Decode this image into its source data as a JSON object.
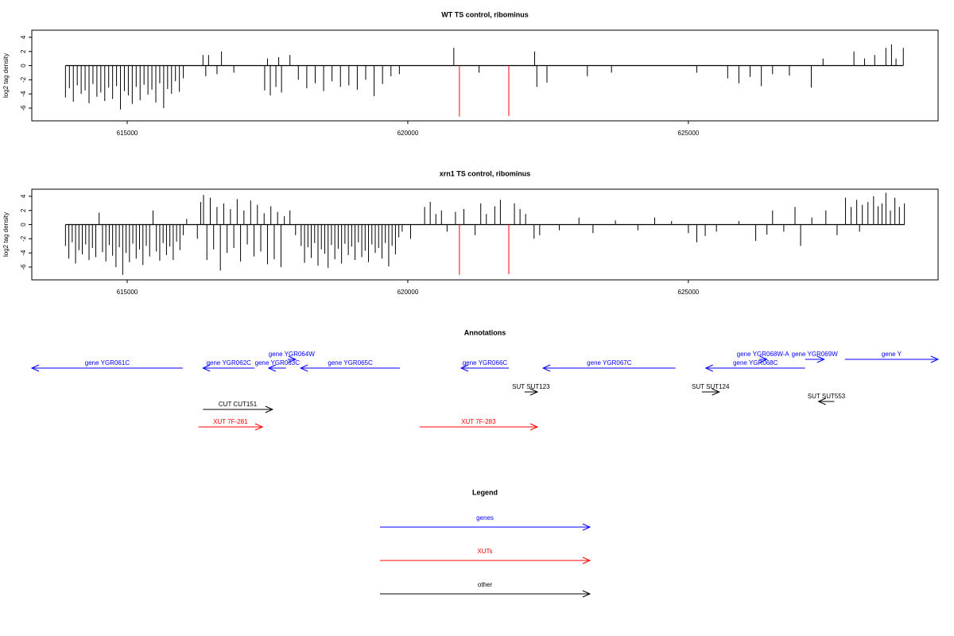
{
  "chart_data": [
    {
      "type": "spike",
      "title": "WT TS control, ribominus",
      "y_label": "log2 tag density",
      "xlim": [
        613300,
        629450
      ],
      "xticks": [
        615000,
        620000,
        625000
      ],
      "ylim": [
        -7.8,
        5
      ],
      "yticks": [
        -6,
        -4,
        -2,
        0,
        2,
        4
      ],
      "series": [
        {
          "color": "#000000",
          "x": [
            613900,
            613970,
            614040,
            614110,
            614180,
            614250,
            614320,
            614390,
            614460,
            614530,
            614600,
            614670,
            614740,
            614810,
            614880,
            614950,
            615020,
            615090,
            615160,
            615230,
            615300,
            615370,
            615440,
            615510,
            615580,
            615650,
            615720,
            615790,
            615860,
            615930,
            616000,
            616350,
            616400,
            616450,
            616600,
            616680,
            616900,
            617450,
            617500,
            617550,
            617650,
            617700,
            617750,
            617900,
            618050,
            618200,
            618350,
            618500,
            618650,
            618800,
            618950,
            619100,
            619250,
            619400,
            619550,
            619700,
            619850,
            620820,
            621270,
            622260,
            622300,
            622480,
            623200,
            623630,
            625150,
            625700,
            625900,
            626100,
            626300,
            626500,
            626800,
            627190,
            627400,
            627950,
            628140,
            628320,
            628520,
            628620,
            628700,
            628830
          ],
          "values": [
            -4.5,
            -3.2,
            -5.1,
            -2.8,
            -4.0,
            -3.5,
            -5.3,
            -2.6,
            -4.4,
            -3.8,
            -5.0,
            -3.1,
            -4.7,
            -2.9,
            -6.2,
            -3.6,
            -4.2,
            -5.4,
            -3.0,
            -4.9,
            -2.7,
            -4.1,
            -3.4,
            -5.2,
            -2.5,
            -6.0,
            -3.3,
            -4.0,
            -2.2,
            -3.7,
            -1.8,
            1.5,
            -1.5,
            1.5,
            -1.2,
            2.0,
            -1.0,
            -3.5,
            1.0,
            -4.2,
            -3.0,
            1.2,
            -3.8,
            1.5,
            -2.0,
            -3.2,
            -2.5,
            -3.6,
            -2.2,
            -3.0,
            -2.8,
            -3.4,
            -2.0,
            -4.3,
            -2.6,
            -1.5,
            -1.2,
            2.5,
            -1.0,
            2.0,
            -3.0,
            -2.4,
            -1.5,
            -1.0,
            -1.0,
            -1.8,
            -2.5,
            -1.6,
            -2.9,
            -1.2,
            -1.4,
            -3.1,
            1.0,
            2.0,
            1.0,
            1.5,
            2.5,
            3.0,
            1.0,
            2.5
          ]
        },
        {
          "color": "#ff0000",
          "x": [
            620920,
            621800
          ],
          "values": [
            -7.2,
            -7.1
          ]
        }
      ]
    },
    {
      "type": "spike",
      "title": "xrn1 TS control, ribominus",
      "y_label": "log2 tag density",
      "xlim": [
        613300,
        629450
      ],
      "xticks": [
        615000,
        620000,
        625000
      ],
      "ylim": [
        -7.8,
        5
      ],
      "yticks": [
        -6,
        -4,
        -2,
        0,
        2,
        4
      ],
      "series": [
        {
          "color": "#000000",
          "x": [
            613900,
            613960,
            614020,
            614080,
            614140,
            614200,
            614260,
            614320,
            614380,
            614440,
            614500,
            614560,
            614620,
            614680,
            614740,
            614800,
            614860,
            614920,
            614980,
            615040,
            615100,
            615160,
            615220,
            615280,
            615340,
            615400,
            615460,
            615520,
            615580,
            615640,
            615700,
            615760,
            615820,
            615880,
            615940,
            616000,
            616060,
            616250,
            616310,
            616360,
            616420,
            616480,
            616540,
            616600,
            616660,
            616720,
            616780,
            616840,
            616900,
            616960,
            617020,
            617080,
            617140,
            617200,
            617260,
            617320,
            617380,
            617440,
            617500,
            617560,
            617620,
            617680,
            617740,
            617800,
            617900,
            618000,
            618100,
            618160,
            618220,
            618280,
            618340,
            618400,
            618460,
            618520,
            618580,
            618640,
            618700,
            618760,
            618820,
            618880,
            618940,
            619000,
            619060,
            619120,
            619180,
            619240,
            619300,
            619360,
            619420,
            619480,
            619540,
            619600,
            619660,
            619720,
            619780,
            619840,
            619900,
            620050,
            620300,
            620400,
            620500,
            620600,
            620700,
            620850,
            621000,
            621200,
            621300,
            621400,
            621550,
            621650,
            621900,
            622000,
            622100,
            622250,
            622350,
            622700,
            623050,
            623300,
            623700,
            624100,
            624400,
            624700,
            625000,
            625150,
            625300,
            625500,
            625900,
            626200,
            626400,
            626500,
            626700,
            626900,
            627000,
            627200,
            627450,
            627650,
            627800,
            627900,
            628000,
            628050,
            628100,
            628200,
            628300,
            628380,
            628450,
            628520,
            628600,
            628680,
            628760,
            628850
          ],
          "values": [
            -3.0,
            -4.8,
            -2.5,
            -5.5,
            -3.6,
            -4.2,
            -2.8,
            -5.0,
            -3.3,
            -4.6,
            1.7,
            -3.9,
            -5.2,
            -2.9,
            -4.4,
            -6.0,
            -3.2,
            -7.1,
            -4.0,
            -5.3,
            -2.7,
            -4.8,
            -3.5,
            -5.7,
            -3.0,
            -4.5,
            2.0,
            -3.8,
            -5.1,
            -2.6,
            -4.3,
            -3.1,
            -5.0,
            -2.4,
            -3.6,
            -1.5,
            0.8,
            -2.0,
            3.2,
            4.2,
            -5.0,
            3.8,
            -3.5,
            2.5,
            -6.5,
            3.0,
            -4.0,
            2.2,
            -3.3,
            3.6,
            -5.2,
            2.0,
            -2.8,
            3.4,
            -4.5,
            2.8,
            -3.8,
            1.6,
            -5.6,
            2.6,
            -4.9,
            1.8,
            -6.0,
            1.2,
            2.0,
            -1.5,
            -3.0,
            -5.4,
            -3.2,
            -4.7,
            -2.6,
            -5.8,
            -3.5,
            -4.1,
            -6.1,
            -2.9,
            -4.9,
            -3.4,
            -5.5,
            -2.7,
            -4.3,
            -3.1,
            -5.0,
            -2.5,
            -4.6,
            -3.7,
            -5.3,
            -2.8,
            -4.0,
            -3.3,
            -4.8,
            -2.6,
            -5.9,
            -3.0,
            -4.2,
            -1.8,
            -1.0,
            -2.0,
            2.5,
            3.2,
            1.5,
            2.0,
            -1.0,
            1.8,
            2.2,
            -1.5,
            3.0,
            1.5,
            2.6,
            3.5,
            3.0,
            2.2,
            1.5,
            -2.0,
            -1.5,
            -0.8,
            1.0,
            -1.2,
            0.6,
            -0.8,
            1.0,
            0.5,
            -1.2,
            -2.5,
            -1.6,
            -1.0,
            0.5,
            -2.3,
            -1.4,
            2.0,
            -1.0,
            2.5,
            -3.0,
            1.0,
            2.0,
            -1.5,
            3.8,
            2.5,
            3.5,
            -1.0,
            2.8,
            3.2,
            4.0,
            2.6,
            3.0,
            4.5,
            2.0,
            3.8,
            2.5,
            3.0
          ]
        },
        {
          "color": "#ff0000",
          "x": [
            620920,
            621800
          ],
          "values": [
            -7.1,
            -7.0
          ]
        }
      ]
    }
  ],
  "annotations": {
    "title": "Annotations",
    "xlim": [
      613300,
      629450
    ],
    "tracks": [
      {
        "features": [
          {
            "label": "gene YGR064W",
            "color": "#0000ff",
            "strand": "+",
            "start": 617860,
            "end": 618000
          },
          {
            "label": "gene YGR068W-A",
            "color": "#0000ff",
            "strand": "+",
            "start": 626260,
            "end": 626400
          },
          {
            "label": "gene YGR069W",
            "color": "#0000ff",
            "strand": "+",
            "start": 627080,
            "end": 627420
          },
          {
            "label": "gene Y",
            "color": "#0000ff",
            "strand": "+",
            "start": 627790,
            "end": 629450
          }
        ]
      },
      {
        "features": [
          {
            "label": "gene YGR061C",
            "color": "#0000ff",
            "strand": "-",
            "start": 613300,
            "end": 615990
          },
          {
            "label": "gene YGR062C",
            "color": "#0000ff",
            "strand": "-",
            "start": 616350,
            "end": 617270
          },
          {
            "label": "gene YGR063C",
            "color": "#0000ff",
            "strand": "-",
            "start": 617520,
            "end": 617830
          },
          {
            "label": "gene YGR065C",
            "color": "#0000ff",
            "strand": "-",
            "start": 618090,
            "end": 619860
          },
          {
            "label": "gene YGR066C",
            "color": "#0000ff",
            "strand": "-",
            "start": 620950,
            "end": 621800
          },
          {
            "label": "gene YGR067C",
            "color": "#0000ff",
            "strand": "-",
            "start": 622410,
            "end": 624770
          },
          {
            "label": "gene YGR068C",
            "color": "#0000ff",
            "strand": "-",
            "start": 625310,
            "end": 627080
          }
        ]
      },
      {
        "features": [
          {
            "label": "SUT SUT123",
            "color": "#000000",
            "strand": "+",
            "start": 622080,
            "end": 622310
          },
          {
            "label": "SUT SUT124",
            "color": "#000000",
            "strand": "+",
            "start": 625240,
            "end": 625550
          }
        ]
      },
      {
        "features": [
          {
            "label": "SUT SUT553",
            "color": "#000000",
            "strand": "-",
            "start": 627320,
            "end": 627600
          }
        ]
      },
      {
        "features": [
          {
            "label": "CUT CUT151",
            "color": "#000000",
            "strand": "+",
            "start": 616350,
            "end": 617590
          }
        ]
      },
      {
        "features": [
          {
            "label": "XUT 7F-281",
            "color": "#ff0000",
            "strand": "+",
            "start": 616270,
            "end": 617410
          },
          {
            "label": "XUT 7F-283",
            "color": "#ff0000",
            "strand": "+",
            "start": 620210,
            "end": 622310
          }
        ]
      }
    ]
  },
  "legend": {
    "title": "Legend",
    "items": [
      {
        "label": "genes",
        "color": "#0000ff"
      },
      {
        "label": "XUTs",
        "color": "#ff0000"
      },
      {
        "label": "other",
        "color": "#000000"
      }
    ]
  }
}
